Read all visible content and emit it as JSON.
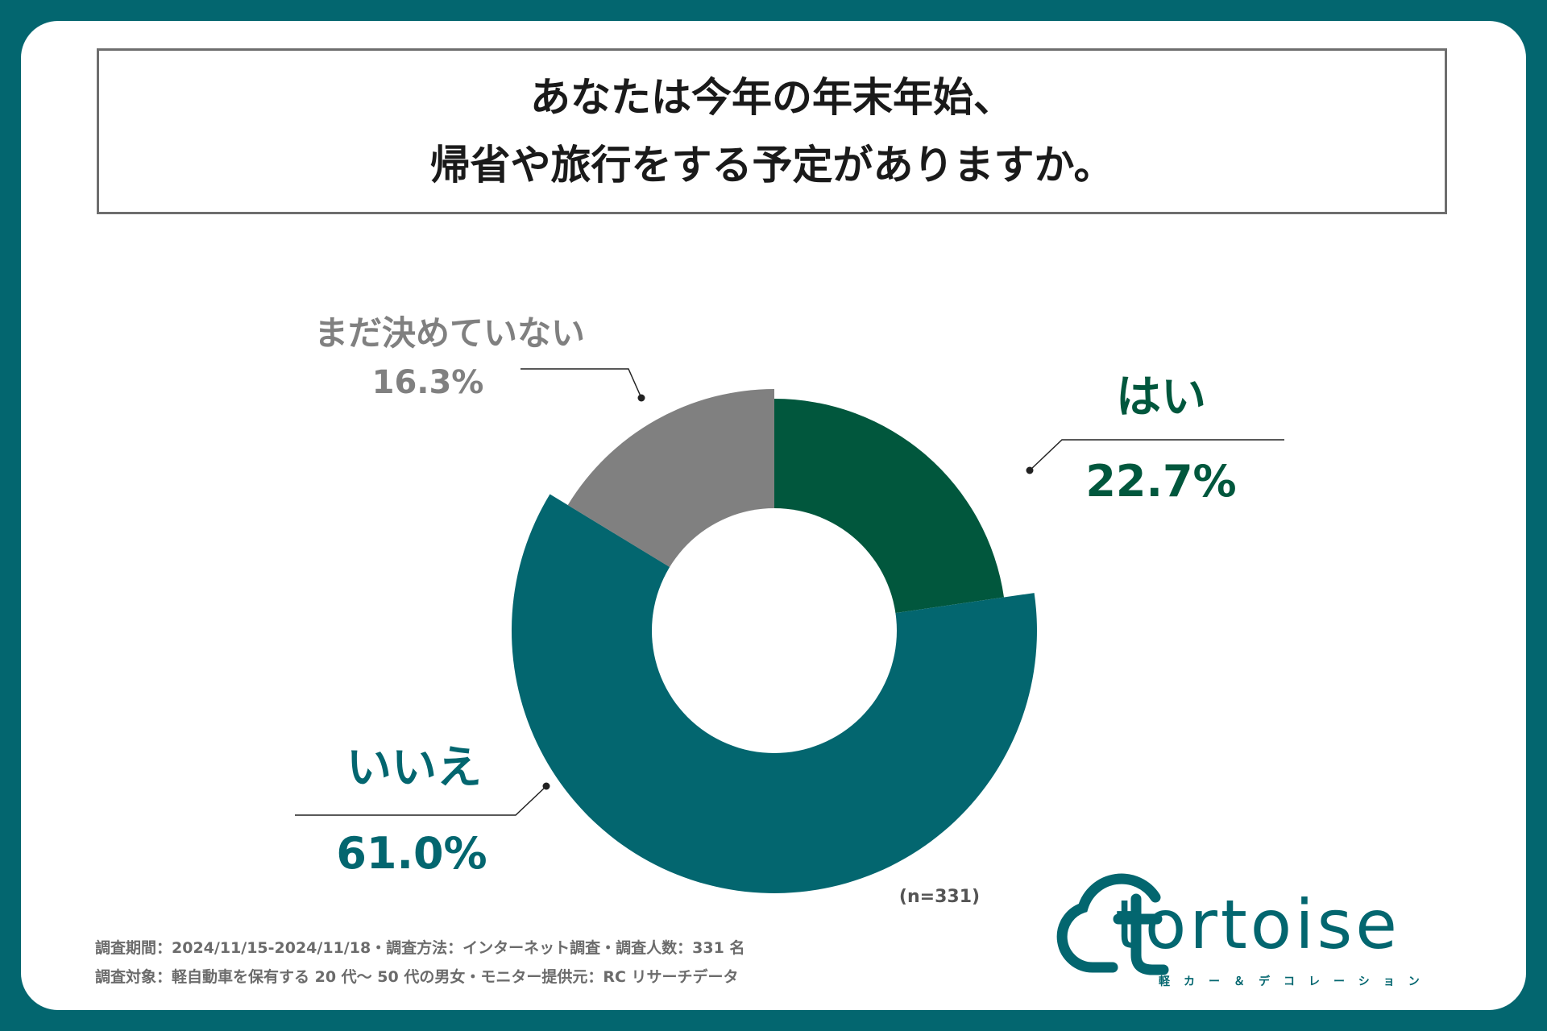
{
  "title": {
    "line1": "あなたは今年の年末年始、",
    "line2": "帰省や旅行をする予定がありますか。"
  },
  "chart_data": {
    "type": "pie",
    "categories": [
      "はい",
      "いいえ",
      "まだ決めていない"
    ],
    "values": [
      22.7,
      61.0,
      16.3
    ],
    "value_labels": [
      "22.7%",
      "61.0%",
      "16.3%"
    ],
    "colors": [
      "#01573d",
      "#03666f",
      "#808080"
    ],
    "donut": true,
    "title": "あなたは今年の年末年始、帰省や旅行をする予定がありますか。"
  },
  "sample_note": "(n=331)",
  "footer": {
    "line1": "調査期間：2024/11/15-2024/11/18・調査方法：インターネット調査・調査人数：331 名",
    "line2": "調査対象：軽自動車を保有する 20 代〜 50 代の男女・モニター提供元：RC リサーチデータ"
  },
  "logo": {
    "text": "tortoise",
    "tagline": "軽カー＆デコレーション"
  }
}
